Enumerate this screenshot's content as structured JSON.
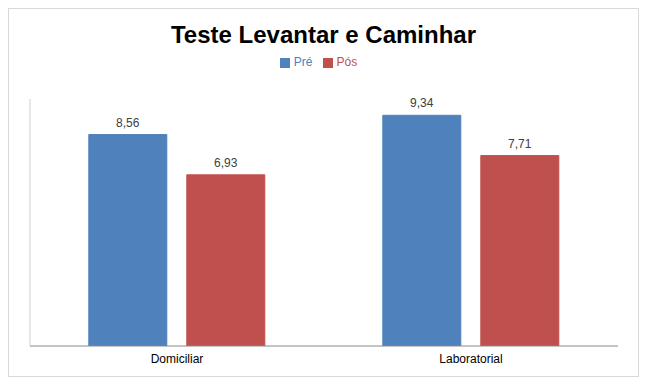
{
  "chart_data": {
    "type": "bar",
    "title": "Teste Levantar e Caminhar",
    "categories": [
      "Domiciliar",
      "Laboratorial"
    ],
    "series": [
      {
        "name": "Pré",
        "color": "#4f81bd",
        "values": [
          8.56,
          9.34
        ],
        "value_labels": [
          "8,56",
          "9,34"
        ]
      },
      {
        "name": "Pós",
        "color": "#c0504d",
        "values": [
          6.93,
          7.71
        ],
        "value_labels": [
          "6,93",
          "7,71"
        ]
      }
    ],
    "ylim": [
      0,
      10
    ],
    "data_labels": true,
    "tick_labels": "x",
    "legend": "top",
    "grid": false
  }
}
